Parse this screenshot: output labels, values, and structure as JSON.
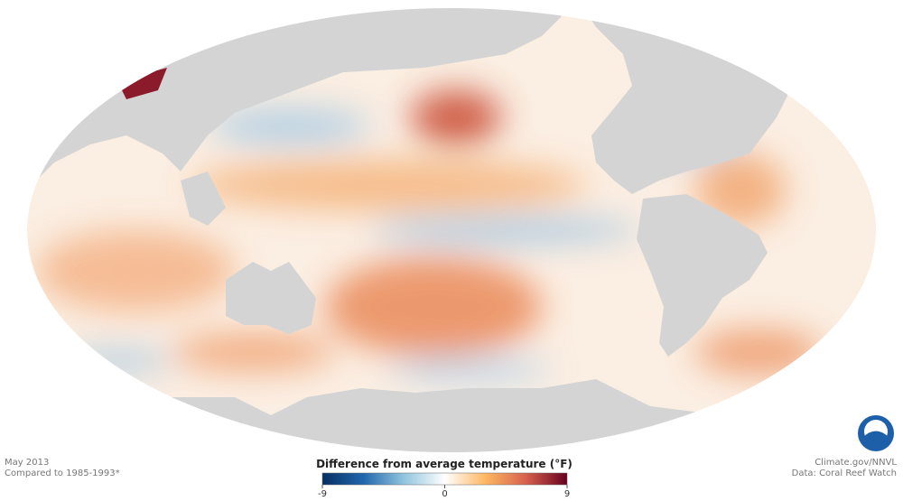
{
  "header": {
    "date": "May 2013",
    "baseline": "Compared to 1985-1993*"
  },
  "credits": {
    "site": "Climate.gov/NNVL",
    "source": "Data: Coral Reef Watch"
  },
  "legend": {
    "title": "Difference from average temperature (°F)",
    "lim": [
      -9,
      9
    ],
    "ticks": [
      -9,
      0,
      9
    ],
    "colors": [
      "#053061",
      "#2166ac",
      "#92c5de",
      "#ffffff",
      "#fdb863",
      "#d6604d",
      "#67001f"
    ]
  }
}
